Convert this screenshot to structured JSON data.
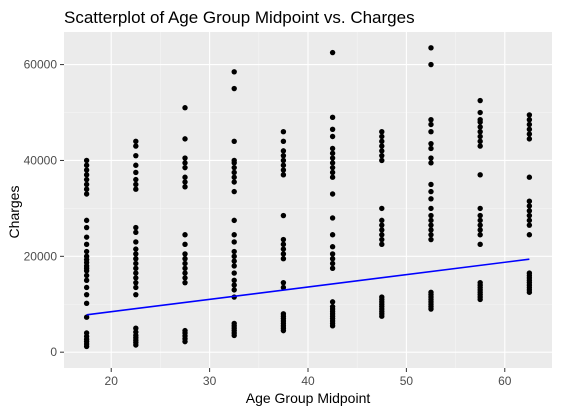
{
  "chart_data": {
    "type": "scatter",
    "title": "Scatterplot of Age Group Midpoint vs. Charges",
    "xlabel": "Age Group Midpoint",
    "ylabel": "Charges",
    "xlim": [
      15.2,
      64.8
    ],
    "ylim": [
      -3300,
      66800
    ],
    "xticks": [
      20,
      30,
      40,
      50,
      60
    ],
    "xtick_labels": [
      "20",
      "30",
      "40",
      "50",
      "60"
    ],
    "yticks": [
      0,
      20000,
      40000,
      60000
    ],
    "ytick_labels": [
      "0",
      "20000",
      "40000",
      "60000"
    ],
    "grid": true,
    "legend": "none",
    "groups": [
      {
        "x": 17.5,
        "values": [
          1200,
          1700,
          2200,
          2700,
          3300,
          4000,
          7300,
          10200,
          12000,
          13500,
          15000,
          16000,
          17000,
          17500,
          18000,
          18700,
          19300,
          20000,
          21000,
          22500,
          24000,
          26000,
          27500,
          33000,
          34000,
          35000,
          36000,
          37000,
          38000,
          39000,
          40000
        ]
      },
      {
        "x": 22.5,
        "values": [
          1500,
          2000,
          2500,
          3000,
          3500,
          4200,
          5000,
          12000,
          13500,
          14500,
          15500,
          16500,
          17500,
          18500,
          19500,
          20500,
          21500,
          23000,
          25000,
          26000,
          34000,
          35000,
          36000,
          37500,
          39000,
          41000,
          43000,
          44000
        ]
      },
      {
        "x": 27.5,
        "values": [
          2200,
          2800,
          3400,
          4000,
          4500,
          14500,
          15500,
          16500,
          17500,
          18500,
          19500,
          20500,
          22500,
          24500,
          34500,
          35500,
          36500,
          38500,
          39500,
          40500,
          44500,
          51000
        ]
      },
      {
        "x": 32.5,
        "values": [
          3500,
          4000,
          4500,
          5000,
          5500,
          6000,
          11500,
          13000,
          14000,
          15000,
          16500,
          18000,
          19000,
          20000,
          21000,
          23000,
          24500,
          27500,
          33500,
          35500,
          36500,
          37500,
          38500,
          39500,
          40000,
          44000,
          55000,
          58500
        ]
      },
      {
        "x": 37.5,
        "values": [
          4500,
          5000,
          5500,
          6000,
          6500,
          7000,
          7500,
          8000,
          13500,
          14500,
          19500,
          20500,
          21500,
          22500,
          23500,
          28500,
          37000,
          38000,
          39000,
          40000,
          41000,
          42000,
          44000,
          46000
        ]
      },
      {
        "x": 42.5,
        "values": [
          5500,
          6000,
          6500,
          7000,
          7500,
          8000,
          8500,
          9000,
          9500,
          10500,
          17500,
          18500,
          19500,
          20500,
          22000,
          24500,
          28000,
          33000,
          36500,
          37500,
          38500,
          39500,
          40500,
          41500,
          42500,
          45000,
          46500,
          49000,
          62500
        ]
      },
      {
        "x": 47.5,
        "values": [
          7500,
          8000,
          8500,
          9000,
          9500,
          10000,
          10500,
          11000,
          11500,
          22500,
          23500,
          24500,
          25500,
          26500,
          27500,
          30000,
          40000,
          41000,
          42000,
          43000,
          44000,
          45000,
          46000
        ]
      },
      {
        "x": 52.5,
        "values": [
          9000,
          9500,
          10000,
          10500,
          11000,
          11500,
          12000,
          12500,
          23500,
          24500,
          25500,
          26500,
          27500,
          28500,
          30000,
          32000,
          33500,
          35000,
          39500,
          40500,
          42500,
          43500,
          46000,
          47500,
          48500,
          60000,
          63500
        ]
      },
      {
        "x": 57.5,
        "values": [
          11000,
          11500,
          12000,
          12500,
          13000,
          13500,
          14000,
          14500,
          22500,
          24500,
          25500,
          26500,
          27500,
          28500,
          30000,
          37000,
          43000,
          44000,
          45000,
          46000,
          47000,
          48000,
          48500,
          50000,
          52500
        ]
      },
      {
        "x": 62.5,
        "values": [
          12500,
          13000,
          13500,
          14000,
          14500,
          15000,
          15500,
          16000,
          16500,
          24500,
          26500,
          27500,
          28500,
          29500,
          30500,
          31500,
          36500,
          44500,
          45500,
          46500,
          47500,
          48500,
          49500
        ]
      }
    ],
    "trend_line": {
      "x": [
        17.5,
        62.5
      ],
      "y": [
        7800,
        19400
      ],
      "color": "#0000ff"
    },
    "colors": {
      "panel": "#ebebeb",
      "grid_major": "#ffffff",
      "grid_minor": "#f5f5f5",
      "point": "#000000",
      "tick": "#333333"
    }
  }
}
